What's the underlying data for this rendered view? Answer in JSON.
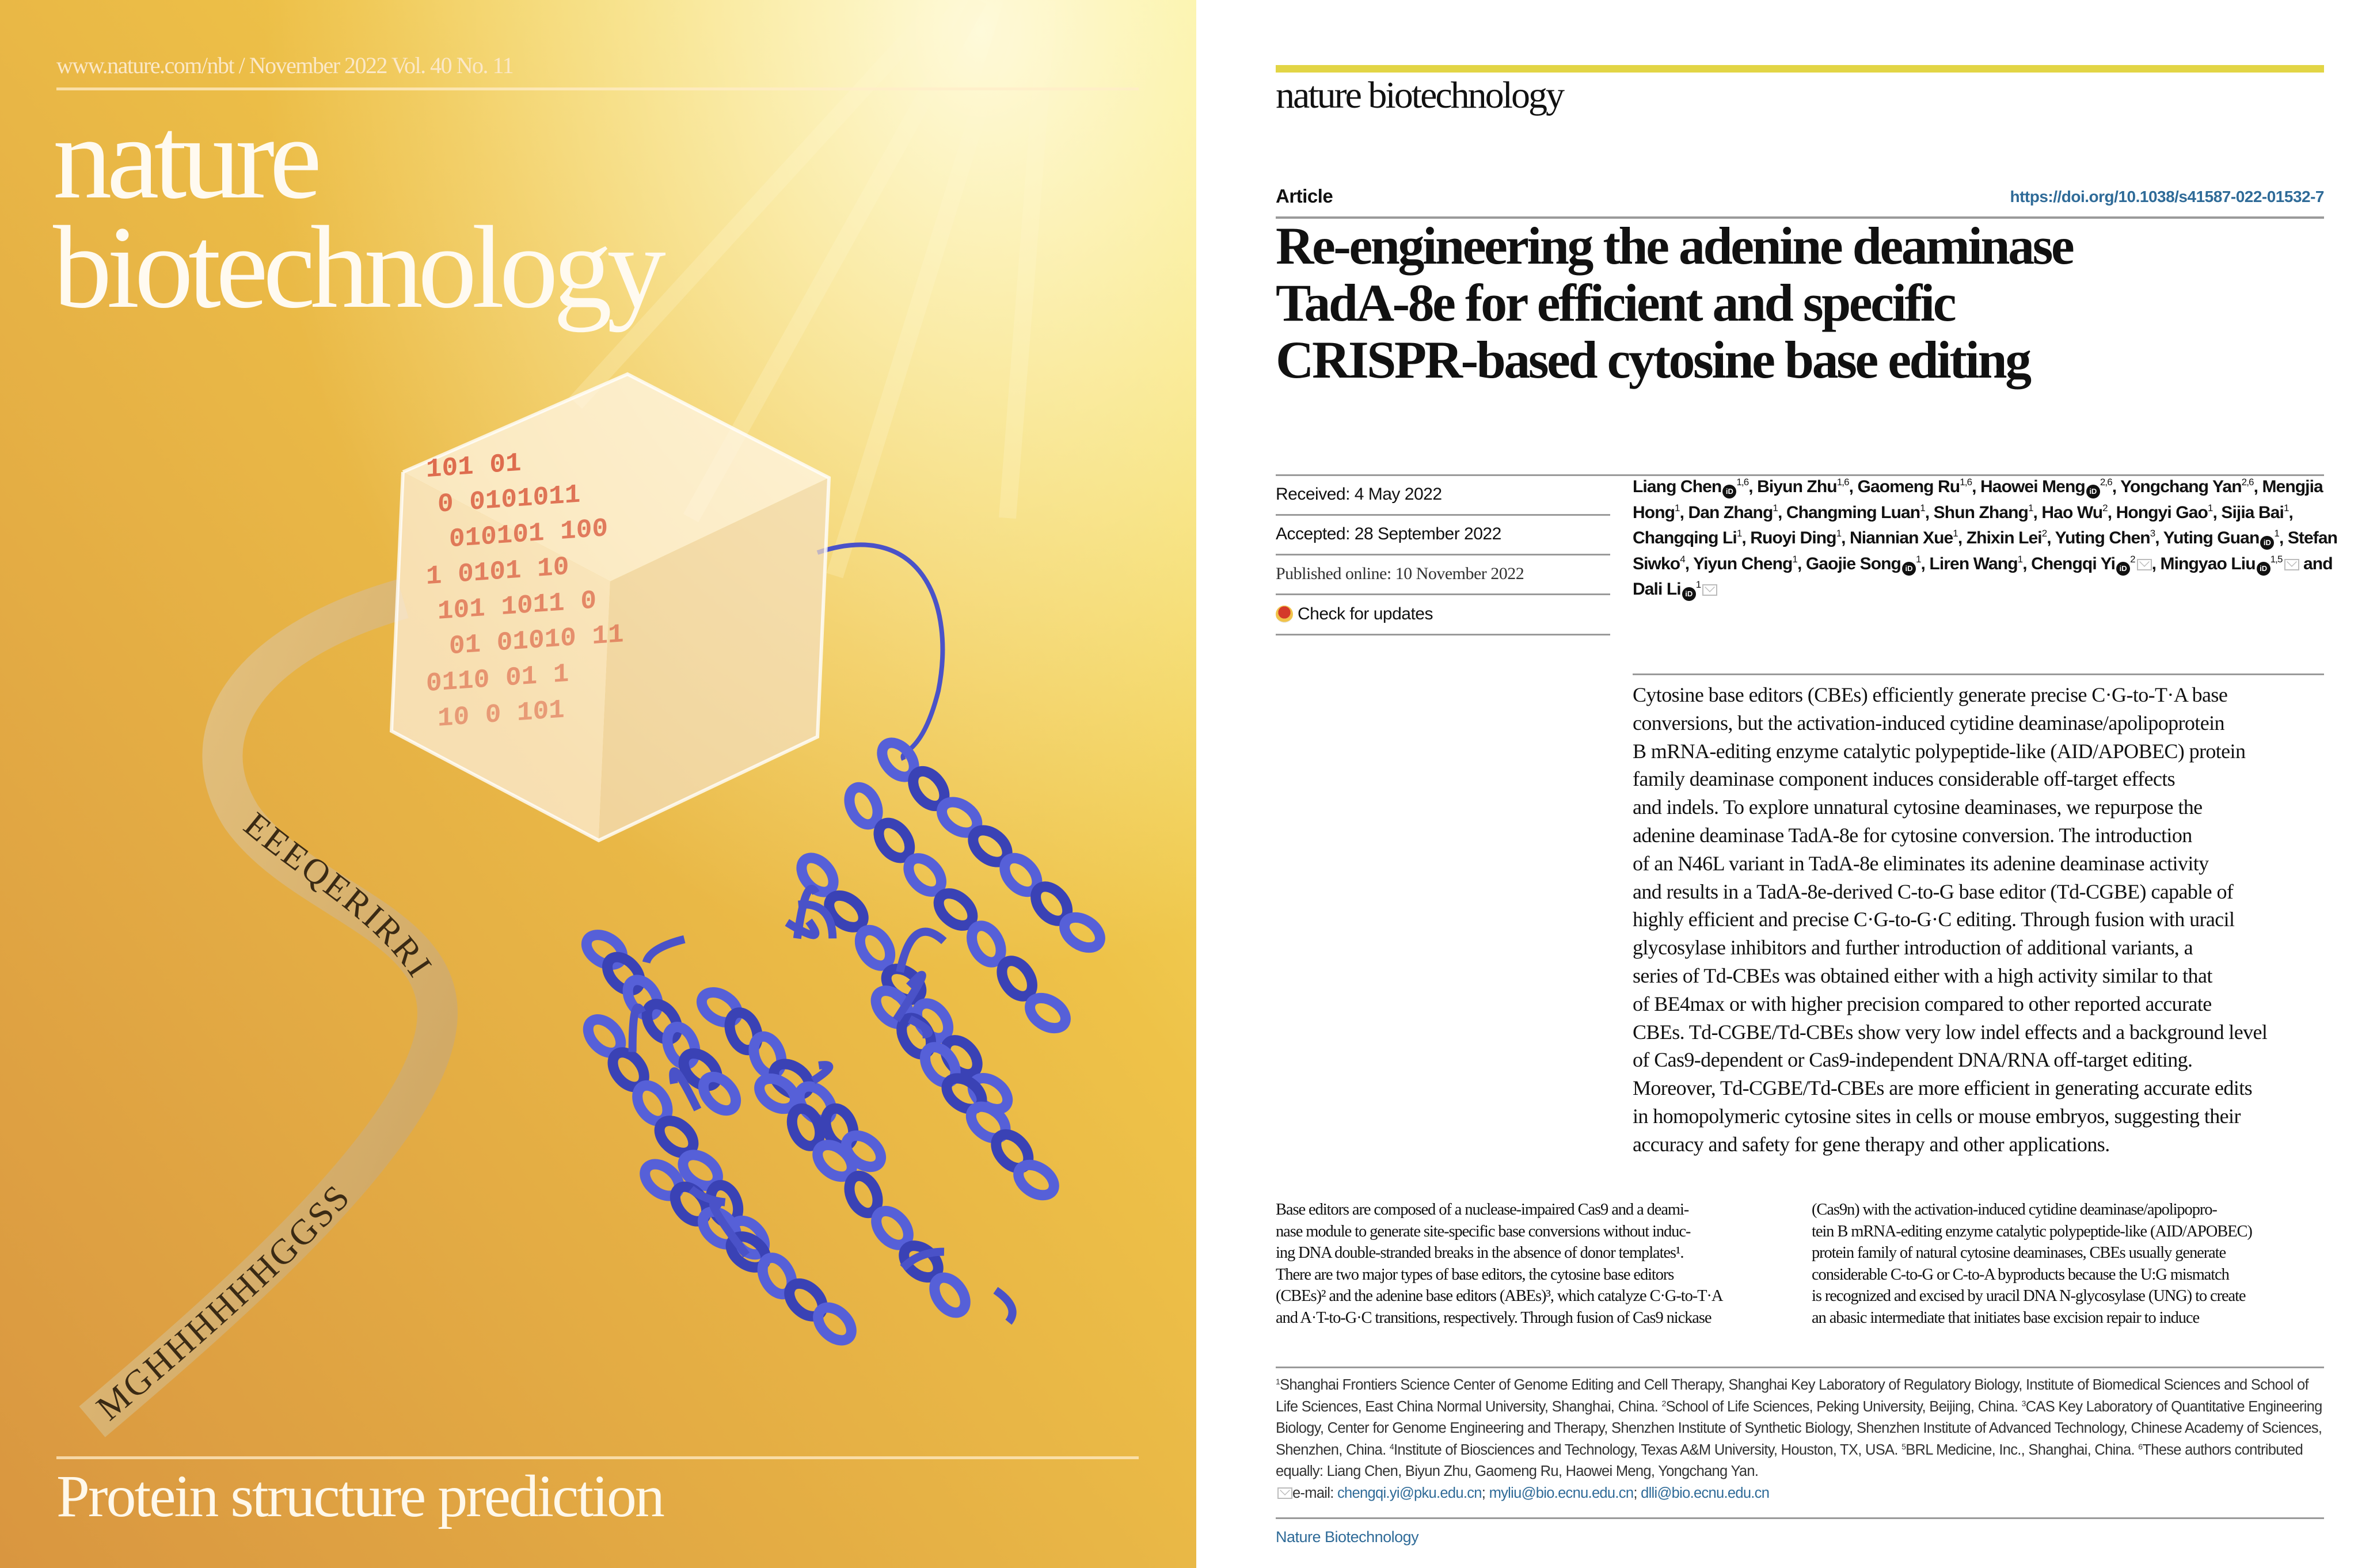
{
  "cover": {
    "header": "www.nature.com/nbt / November 2022 Vol. 40 No. 11",
    "title_line1": "nature",
    "title_line2": "biotechnology",
    "tagline": "Protein structure prediction",
    "ribbon_text_upper": "EEEQERIRRI",
    "ribbon_text_lower": "MGHHHHHHGGSS",
    "cube_text": [
      "101 01",
      "0 0101011",
      "010101 100",
      "1 0101  10",
      "101 1011 0",
      "01 01010 11",
      "0110  01 1",
      "10 0 101"
    ],
    "colors": {
      "background_light": "#f4de4e",
      "background_dark": "#dc9a3e",
      "protein": "#4a52c8"
    }
  },
  "page": {
    "journal_logo": "nature biotechnology",
    "article_type": "Article",
    "doi": "https://doi.org/10.1038/s41587-022-01532-7",
    "title_lines": [
      "Re-engineering the adenine deaminase",
      "TadA-8e for efficient and specific",
      "CRISPR-based cytosine base editing"
    ],
    "received": "Received: 4 May 2022",
    "accepted": "Accepted: 28 September 2022",
    "published": "Published online: 10 November 2022",
    "check_updates": "Check for updates",
    "authors": [
      {
        "name": "Liang Chen",
        "orcid": true,
        "sup": "1,6"
      },
      {
        "name": "Biyun Zhu",
        "sup": "1,6"
      },
      {
        "name": "Gaomeng Ru",
        "sup": "1,6"
      },
      {
        "name": "Haowei Meng",
        "orcid": true,
        "sup": "2,6"
      },
      {
        "name": "Yongchang Yan",
        "sup": "2,6"
      },
      {
        "name": "Mengjia Hong",
        "sup": "1"
      },
      {
        "name": "Dan Zhang",
        "sup": "1"
      },
      {
        "name": "Changming Luan",
        "sup": "1"
      },
      {
        "name": "Shun Zhang",
        "sup": "1"
      },
      {
        "name": "Hao Wu",
        "sup": "2"
      },
      {
        "name": "Hongyi Gao",
        "sup": "1"
      },
      {
        "name": "Sijia Bai",
        "sup": "1"
      },
      {
        "name": "Changqing Li",
        "sup": "1"
      },
      {
        "name": "Ruoyi Ding",
        "sup": "1"
      },
      {
        "name": "Niannian Xue",
        "sup": "1"
      },
      {
        "name": "Zhixin Lei",
        "sup": "2"
      },
      {
        "name": "Yuting Chen",
        "sup": "3"
      },
      {
        "name": "Yuting Guan",
        "orcid": true,
        "sup": "1"
      },
      {
        "name": "Stefan Siwko",
        "sup": "4"
      },
      {
        "name": "Yiyun Cheng",
        "sup": "1"
      },
      {
        "name": "Gaojie Song",
        "orcid": true,
        "sup": "1"
      },
      {
        "name": "Liren Wang",
        "sup": "1"
      },
      {
        "name": "Chengqi Yi",
        "orcid": true,
        "sup": "2",
        "email": true
      },
      {
        "name": "Mingyao Liu",
        "orcid": true,
        "sup": "1,5",
        "email": true
      },
      {
        "name": "Dali Li",
        "orcid": true,
        "sup": "1",
        "email": true
      }
    ],
    "authors_and": "and",
    "abstract_lines": [
      "Cytosine base editors (CBEs) efficiently generate precise C·G-to-T·A base",
      "conversions, but the activation-induced cytidine deaminase/apolipoprotein",
      "B mRNA-editing enzyme catalytic polypeptide-like (AID/APOBEC) protein",
      "family deaminase component induces considerable off-target effects",
      "and indels. To explore unnatural cytosine deaminases, we repurpose the",
      "adenine deaminase TadA-8e for cytosine conversion. The introduction",
      "of an N46L variant in TadA-8e eliminates its adenine deaminase activity",
      "and results in a TadA-8e-derived C-to-G base editor (Td-CGBE) capable of",
      "highly efficient and precise C·G-to-G·C editing. Through fusion with uracil",
      "glycosylase inhibitors and further introduction of additional variants, a",
      "series of Td-CBEs was obtained either with a high activity similar to that",
      "of BE4max or with higher precision compared to other reported accurate",
      "CBEs. Td-CGBE/Td-CBEs show very low indel effects and a background level",
      "of Cas9-dependent or Cas9-independent DNA/RNA off-target editing.",
      "Moreover, Td-CGBE/Td-CBEs are more efficient in generating accurate edits",
      "in homopolymeric cytosine sites in cells or mouse embryos, suggesting their",
      "accuracy and safety for gene therapy and other applications."
    ],
    "body_left_lines": [
      "Base editors are composed of a nuclease-impaired Cas9 and a deami-",
      "nase module to generate site-specific base conversions without induc-",
      "ing DNA double-stranded breaks in the absence of donor templates¹.",
      "There are two major types of base editors, the cytosine base editors",
      "(CBEs)² and the adenine base editors (ABEs)³, which catalyze C·G-to-T·A",
      "and A·T-to-G·C transitions, respectively. Through fusion of Cas9 nickase"
    ],
    "body_right_lines": [
      "(Cas9n) with the activation-induced cytidine deaminase/apolipopro-",
      "tein B mRNA-editing enzyme catalytic polypeptide-like (AID/APOBEC)",
      "protein family of natural cytosine deaminases, CBEs usually generate",
      "considerable C-to-G or C-to-A byproducts because the U:G mismatch",
      "is recognized and excised by uracil DNA N-glycosylase (UNG) to create",
      "an abasic intermediate that initiates base excision repair to induce"
    ],
    "affiliations": [
      {
        "sup": "1",
        "text": "Shanghai Frontiers Science Center of Genome Editing and Cell Therapy, Shanghai Key Laboratory of Regulatory Biology, Institute of Biomedical Sciences and School of Life Sciences, East China Normal University, Shanghai, China. "
      },
      {
        "sup": "2",
        "text": "School of Life Sciences, Peking University, Beijing, China. "
      },
      {
        "sup": "3",
        "text": "CAS Key Laboratory of Quantitative Engineering Biology, Center for Genome Engineering and Therapy, Shenzhen Institute of Synthetic Biology, Shenzhen Institute of Advanced Technology, Chinese Academy of Sciences, Shenzhen, China. "
      },
      {
        "sup": "4",
        "text": "Institute of Biosciences and Technology, Texas A&M University, Houston, TX, USA. "
      },
      {
        "sup": "5",
        "text": "BRL Medicine, Inc., Shanghai, China. "
      },
      {
        "sup": "6",
        "text": "These authors contributed equally: Liang Chen, Biyun Zhu, Gaomeng Ru, Haowei Meng, Yongchang Yan."
      }
    ],
    "email_label": "e-mail: ",
    "emails": [
      "chengqi.yi@pku.edu.cn",
      "myliu@bio.ecnu.edu.cn",
      "dlli@bio.ecnu.edu.cn"
    ],
    "footer_journal": "Nature Biotechnology",
    "colors": {
      "accent_bar": "#e2d545",
      "link": "#2f6b98"
    }
  }
}
